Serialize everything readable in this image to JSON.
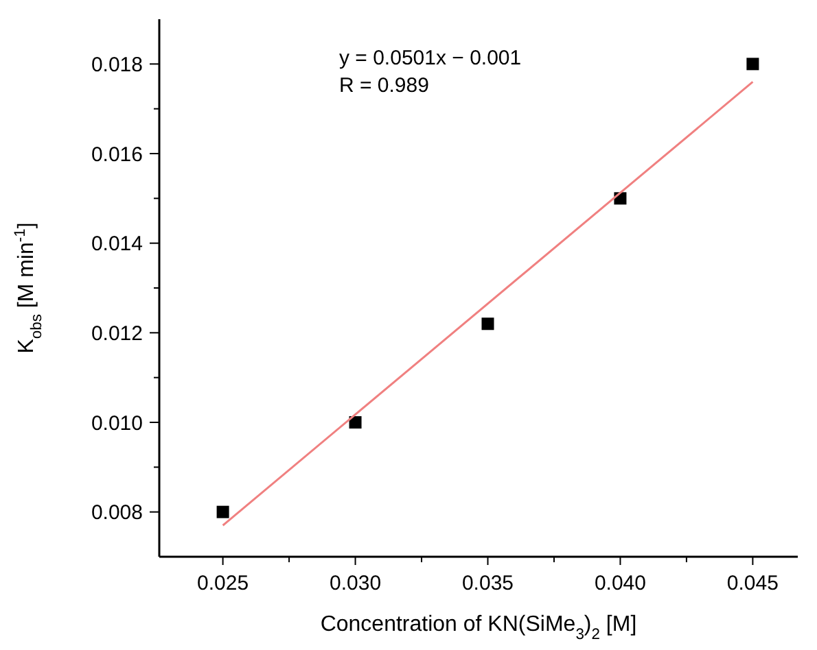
{
  "chart_data": {
    "type": "scatter",
    "xlabel": "Concentration of KN(SiMe$_{3}$)$_{2}$ [M]",
    "ylabel": "K$_{obs}$ [M min$^{-1}$]",
    "annotations": [
      "y = 0.0501x − 0.001",
      "R = 0.989"
    ],
    "xlim": [
      0.0226,
      0.0467
    ],
    "ylim": [
      0.007,
      0.019
    ],
    "xticks": [
      0.025,
      {
        "value": 0.0275,
        "label": null
      },
      "0.030",
      {
        "value": 0.0325,
        "label": null
      },
      0.035,
      {
        "value": 0.0375,
        "label": null
      },
      "0.040",
      {
        "value": 0.0425,
        "label": null
      },
      0.045
    ],
    "yticks": [
      0.008,
      {
        "value": 0.009,
        "label": null
      },
      "0.010",
      {
        "value": 0.011,
        "label": null
      },
      0.012,
      {
        "value": 0.013,
        "label": null
      },
      0.014,
      {
        "value": 0.015,
        "label": null
      },
      0.016,
      {
        "value": 0.017,
        "label": null
      },
      0.018
    ],
    "grid": false,
    "series": [
      {
        "color": "#000000",
        "marker": "square",
        "x": [
          0.025,
          0.03,
          0.035,
          0.04,
          0.045
        ],
        "values": [
          0.008,
          0.01,
          0.0122,
          0.015,
          0.018
        ]
      },
      {
        "type": "line",
        "color": "#f08080",
        "marker": "none",
        "line_style": "solid",
        "x": [
          0.025,
          0.045
        ],
        "values": [
          0.0077,
          0.0176
        ]
      }
    ]
  }
}
